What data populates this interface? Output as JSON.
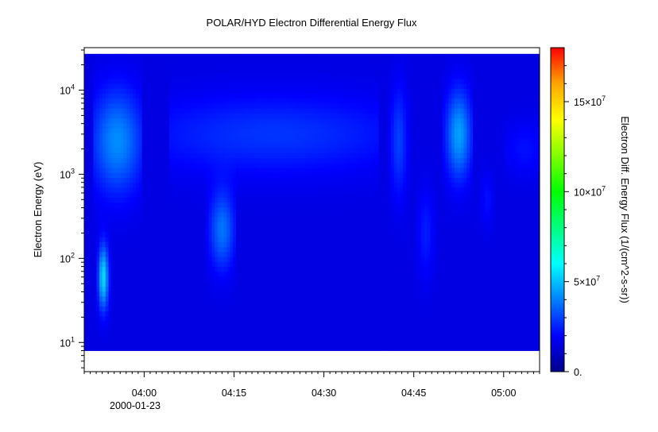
{
  "chart_data": {
    "type": "heatmap",
    "title": "POLAR/HYD  Electron Differential Energy Flux",
    "ylabel": "Electron Energy (eV)",
    "ylog": true,
    "ylim": [
      4.5,
      32000
    ],
    "x_time_range": [
      "2000-01-23 03:50",
      "2000-01-23 05:06"
    ],
    "x_ticks": [
      {
        "time": "04:00",
        "minute": 240
      },
      {
        "time": "04:15",
        "minute": 255
      },
      {
        "time": "04:30",
        "minute": 270
      },
      {
        "time": "04:45",
        "minute": 285
      },
      {
        "time": "05:00",
        "minute": 300
      }
    ],
    "x_date_label": "2000-01-23",
    "y_ticks": [
      {
        "value": 10,
        "base": "10",
        "exp": "1"
      },
      {
        "value": 100,
        "base": "10",
        "exp": "2"
      },
      {
        "value": 1000,
        "base": "10",
        "exp": "3"
      },
      {
        "value": 10000,
        "base": "10",
        "exp": "4"
      }
    ],
    "colorbar": {
      "label": "Electron Diff. Energy Flux (1/(cm^2-s-sr))",
      "range": [
        0,
        180000000
      ],
      "ticks": [
        {
          "value": 0,
          "label": "0."
        },
        {
          "value": 50000000,
          "base": "5×10",
          "exp": "7"
        },
        {
          "value": 100000000,
          "base": "10×10",
          "exp": "7"
        },
        {
          "value": 150000000,
          "base": "15×10",
          "exp": "7"
        }
      ],
      "colormap": [
        "#00008b",
        "#0000ff",
        "#0080ff",
        "#00ffff",
        "#00ff80",
        "#00ff00",
        "#80ff00",
        "#ffff00",
        "#ffa500",
        "#ff0000"
      ]
    },
    "data_energy_range_ev": [
      8,
      27000
    ],
    "background_flux": 15000000,
    "features": [
      {
        "start_minute": 232.5,
        "end_minute": 238.5,
        "energy_low_ev": 600,
        "energy_high_ev": 12000,
        "peak_energy_ev": 2500,
        "peak_flux": 42000000
      },
      {
        "start_minute": 245,
        "end_minute": 278,
        "energy_low_ev": 800,
        "energy_high_ev": 8000,
        "peak_energy_ev": 3000,
        "peak_flux": 28000000
      },
      {
        "start_minute": 251.5,
        "end_minute": 254.5,
        "energy_low_ev": 80,
        "energy_high_ev": 800,
        "peak_energy_ev": 220,
        "peak_flux": 38000000
      },
      {
        "start_minute": 281.5,
        "end_minute": 283.5,
        "energy_low_ev": 400,
        "energy_high_ev": 10000,
        "peak_energy_ev": 2500,
        "peak_flux": 30000000
      },
      {
        "start_minute": 286,
        "end_minute": 288,
        "energy_low_ev": 50,
        "energy_high_ev": 700,
        "peak_energy_ev": 200,
        "peak_flux": 24000000
      },
      {
        "start_minute": 291,
        "end_minute": 294,
        "energy_low_ev": 900,
        "energy_high_ev": 12000,
        "peak_energy_ev": 3000,
        "peak_flux": 45000000
      },
      {
        "start_minute": 296.5,
        "end_minute": 298,
        "energy_low_ev": 250,
        "energy_high_ev": 1200,
        "peak_energy_ev": 500,
        "peak_flux": 22000000
      },
      {
        "start_minute": 301,
        "end_minute": 306,
        "energy_low_ev": 1000,
        "energy_high_ev": 5000,
        "peak_energy_ev": 2000,
        "peak_flux": 22000000
      },
      {
        "start_minute": 233,
        "end_minute": 233.4,
        "energy_low_ev": 20,
        "energy_high_ev": 130,
        "peak_energy_ev": 60,
        "peak_flux": 55000000
      }
    ]
  }
}
